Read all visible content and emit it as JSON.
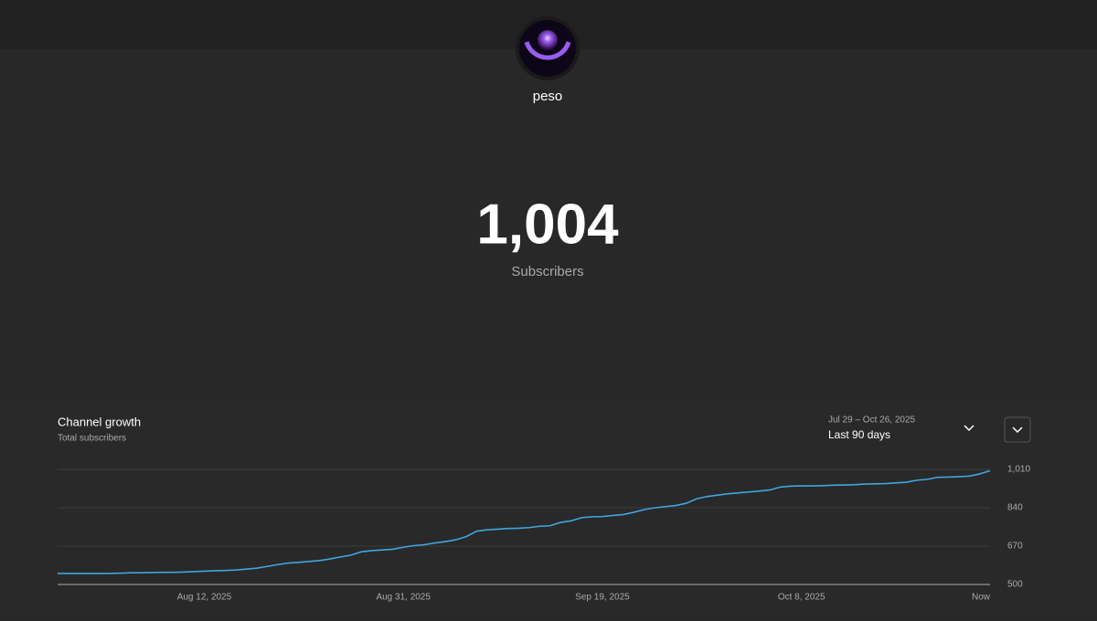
{
  "header": {
    "channel_name": "peso",
    "subscriber_count": "1,004",
    "subscriber_label": "Subscribers"
  },
  "chart_data": {
    "type": "line",
    "title": "Channel growth",
    "subtitle": "Total subscribers",
    "date_range": "Jul 29 – Oct 26, 2025",
    "period": "Last 90 days",
    "categories": [
      null,
      null,
      null,
      null,
      null,
      null,
      null,
      null,
      null,
      null,
      null,
      null,
      null,
      null,
      "Aug 12, 2025",
      null,
      null,
      null,
      null,
      null,
      null,
      null,
      null,
      null,
      null,
      null,
      null,
      null,
      null,
      null,
      null,
      null,
      null,
      "Aug 31, 2025",
      null,
      null,
      null,
      null,
      null,
      null,
      null,
      null,
      null,
      null,
      null,
      null,
      null,
      null,
      null,
      null,
      null,
      null,
      "Sep 19, 2025",
      null,
      null,
      null,
      null,
      null,
      null,
      null,
      null,
      null,
      null,
      null,
      null,
      null,
      null,
      null,
      null,
      null,
      null,
      "Oct 8, 2025",
      null,
      null,
      null,
      null,
      null,
      null,
      null,
      null,
      null,
      null,
      null,
      null,
      null,
      null,
      null,
      null,
      null,
      "Now"
    ],
    "series": [
      {
        "name": "Total subscribers",
        "color": "#3ea6e0",
        "values": [
          549,
          549,
          549,
          549,
          549,
          549,
          550,
          552,
          552,
          553,
          554,
          554,
          555,
          557,
          559,
          561,
          562,
          564,
          568,
          572,
          580,
          588,
          595,
          598,
          602,
          606,
          613,
          622,
          630,
          645,
          650,
          653,
          656,
          665,
          672,
          676,
          684,
          690,
          698,
          712,
          736,
          742,
          745,
          748,
          749,
          752,
          758,
          760,
          775,
          782,
          796,
          800,
          801,
          806,
          810,
          820,
          832,
          840,
          845,
          850,
          860,
          880,
          890,
          896,
          902,
          906,
          910,
          914,
          919,
          932,
          936,
          937,
          937,
          938,
          940,
          941,
          942,
          945,
          946,
          947,
          950,
          953,
          962,
          966,
          975,
          976,
          978,
          980,
          990,
          1004
        ]
      }
    ],
    "ylim": [
      500,
      1010
    ],
    "yticks": [
      500,
      670,
      840,
      {
        "value": 1010,
        "label": "1,010"
      }
    ],
    "grid": true
  }
}
